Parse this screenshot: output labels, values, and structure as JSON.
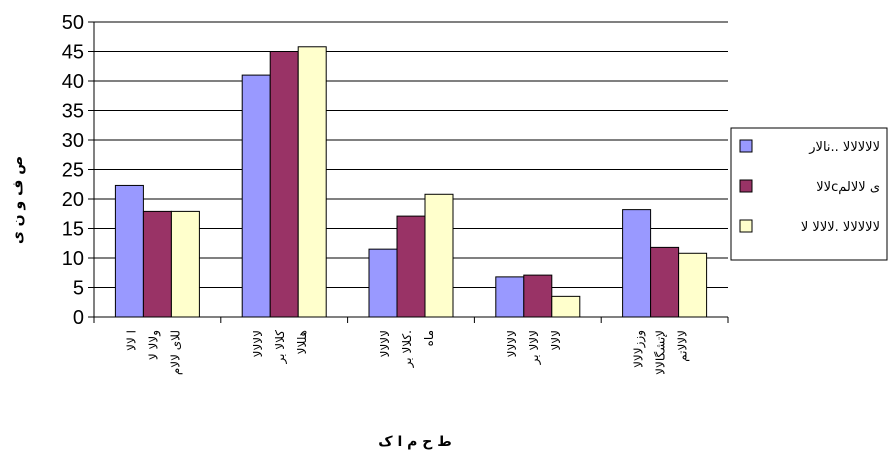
{
  "chart_data": {
    "type": "bar",
    "title": "",
    "xlabel": "ط ح م ا ک",
    "ylabel": "ص ف و ن ی",
    "ylim": [
      0,
      50
    ],
    "yticks": [
      0,
      5,
      10,
      15,
      20,
      25,
      30,
      35,
      40,
      45,
      50
    ],
    "grid": true,
    "legend_position": "right",
    "categories": [
      [
        "ا لالا",
        "ولالا لا",
        "للای لالام"
      ],
      [
        "لالالالا",
        "کلالا بر",
        "هللالا"
      ],
      [
        "لالالالا",
        "کلالا بر.",
        "ماه"
      ],
      [
        "لالالالا",
        "لالالا بر",
        "لالالا"
      ],
      [
        "وززلالالا",
        "لإتشگالالا",
        "لالالاتم"
      ]
    ],
    "series": [
      {
        "name": "لالالالالا ..نالار",
        "color": "#9999ff",
        "values": [
          22.3,
          41,
          11.5,
          6.8,
          18.2
        ]
      },
      {
        "name": "لالاcی لالالم",
        "color": "#993366",
        "values": [
          17.9,
          45,
          17.1,
          7.1,
          11.8
        ]
      },
      {
        "name": "لالالالالا .لالالا لا",
        "color": "#ffffcc",
        "values": [
          17.9,
          45.8,
          20.8,
          3.5,
          10.8
        ]
      }
    ]
  }
}
